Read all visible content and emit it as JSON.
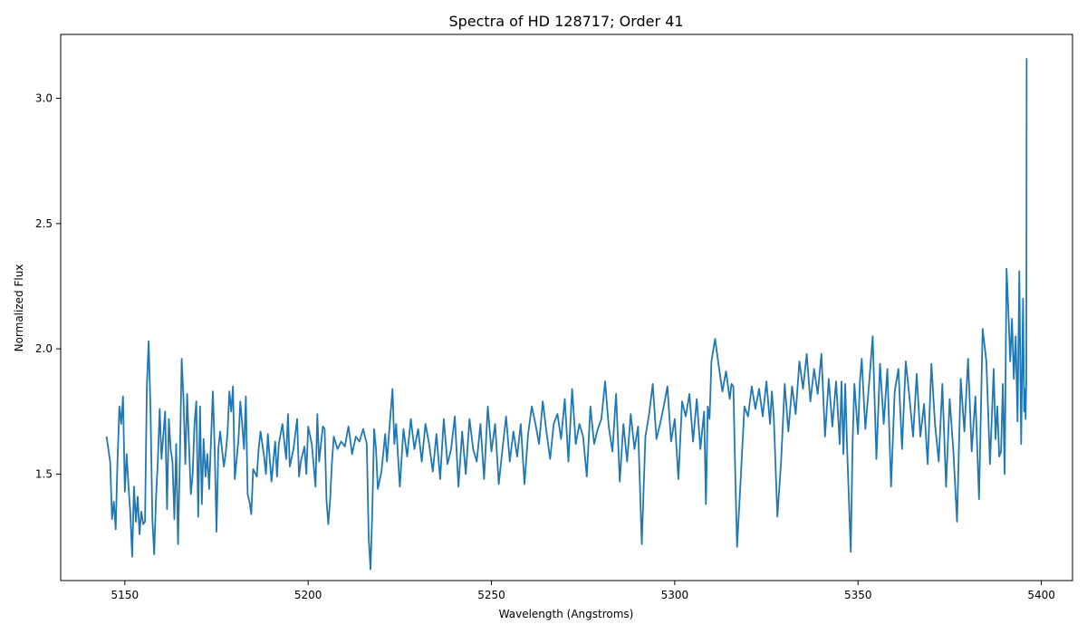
{
  "chart_data": {
    "type": "line",
    "title": "Spectra of HD 128717; Order 41",
    "xlabel": "Wavelength (Angstroms)",
    "ylabel": "Normalized Flux",
    "xlim": [
      5132.5,
      5408.5
    ],
    "ylim": [
      1.075,
      3.255
    ],
    "x_ticks": [
      5150,
      5200,
      5250,
      5300,
      5350,
      5400
    ],
    "x_tick_labels": [
      "5150",
      "5200",
      "5250",
      "5300",
      "5350",
      "5400"
    ],
    "y_ticks": [
      1.5,
      2.0,
      2.5,
      3.0
    ],
    "y_tick_labels": [
      "1.5",
      "2.0",
      "2.5",
      "3.0"
    ],
    "grid": false,
    "legend": "none",
    "series": [
      {
        "color": "#1f77b4",
        "x": [
          5145,
          5146,
          5146.5,
          5147,
          5147.5,
          5148,
          5148.5,
          5149,
          5149.5,
          5150,
          5150.5,
          5151,
          5151.5,
          5152,
          5152.5,
          5153,
          5153.5,
          5154,
          5154.5,
          5155,
          5155.5,
          5156,
          5156.5,
          5157,
          5157.5,
          5158,
          5158.5,
          5159,
          5159.5,
          5160,
          5161,
          5161.5,
          5162,
          5162.5,
          5163,
          5163.5,
          5164,
          5164.5,
          5165,
          5165.5,
          5166,
          5166.5,
          5167,
          5167.5,
          5168,
          5168.5,
          5169,
          5169.5,
          5170,
          5170.5,
          5171,
          5171.5,
          5172,
          5172.5,
          5173,
          5174,
          5174.5,
          5175,
          5175.5,
          5176,
          5177,
          5177.5,
          5178,
          5178.5,
          5179,
          5179.5,
          5180,
          5181,
          5181.5,
          5182,
          5182.5,
          5183,
          5183.5,
          5184,
          5184.5,
          5185,
          5186,
          5186.5,
          5187,
          5188,
          5188.5,
          5189,
          5190,
          5191,
          5191.5,
          5192,
          5193,
          5194,
          5194.5,
          5195,
          5196,
          5197,
          5197.5,
          5198,
          5199,
          5199.5,
          5200,
          5201,
          5202,
          5202.5,
          5203,
          5204,
          5204.5,
          5205,
          5205.5,
          5206,
          5206.5,
          5207,
          5208,
          5209,
          5210,
          5211,
          5212,
          5213,
          5214,
          5215,
          5216,
          5216.5,
          5217,
          5217.5,
          5218,
          5218.5,
          5219,
          5220,
          5221,
          5221.5,
          5222,
          5223,
          5223.5,
          5224,
          5225,
          5226,
          5227,
          5228,
          5229,
          5230,
          5231,
          5232,
          5233,
          5234,
          5235,
          5236,
          5237,
          5238,
          5239,
          5240,
          5241,
          5242,
          5243,
          5244,
          5245,
          5246,
          5247,
          5248,
          5249,
          5250,
          5251,
          5252,
          5253,
          5254,
          5255,
          5256,
          5257,
          5258,
          5259,
          5260,
          5261,
          5262,
          5263,
          5264,
          5265,
          5266,
          5267,
          5268,
          5269,
          5270,
          5271,
          5272,
          5273,
          5274,
          5275,
          5276,
          5277,
          5278,
          5279,
          5280,
          5281,
          5282,
          5283,
          5284,
          5285,
          5286,
          5287,
          5288,
          5289,
          5290,
          5291,
          5292,
          5293,
          5294,
          5295,
          5296,
          5297,
          5298,
          5299,
          5300,
          5301,
          5302,
          5303,
          5304,
          5305,
          5306,
          5307,
          5308,
          5308.5,
          5309,
          5309.5,
          5310,
          5311,
          5312,
          5313,
          5314,
          5315,
          5315.5,
          5316,
          5316.5,
          5317,
          5318,
          5319,
          5320,
          5321,
          5322,
          5323,
          5324,
          5325,
          5326,
          5326.5,
          5327,
          5328,
          5329,
          5330,
          5331,
          5332,
          5333,
          5334,
          5335,
          5336,
          5337,
          5338,
          5339,
          5340,
          5341,
          5342,
          5343,
          5344,
          5345,
          5345.5,
          5346,
          5346.5,
          5347,
          5348,
          5348.5,
          5349,
          5350,
          5350.5,
          5351,
          5352,
          5353,
          5354,
          5355,
          5356,
          5357,
          5358,
          5359,
          5360,
          5361,
          5362,
          5363,
          5364,
          5365,
          5366,
          5367,
          5368,
          5369,
          5370,
          5371,
          5372,
          5373,
          5374,
          5375,
          5376,
          5377,
          5378,
          5379,
          5380,
          5381,
          5382,
          5383,
          5384,
          5385,
          5386,
          5387,
          5387.5,
          5388,
          5388.5,
          5389,
          5389.5,
          5390,
          5390.5,
          5391,
          5391.5,
          5392,
          5392.5,
          5393,
          5393.5,
          5394,
          5394.5,
          5395,
          5395.3,
          5395.5,
          5395.7,
          5395.9,
          5396
        ],
        "y": [
          1.65,
          1.55,
          1.32,
          1.39,
          1.28,
          1.55,
          1.77,
          1.7,
          1.81,
          1.43,
          1.58,
          1.45,
          1.34,
          1.17,
          1.45,
          1.31,
          1.41,
          1.26,
          1.35,
          1.3,
          1.31,
          1.85,
          2.03,
          1.75,
          1.32,
          1.18,
          1.4,
          1.55,
          1.76,
          1.56,
          1.75,
          1.36,
          1.72,
          1.6,
          1.55,
          1.32,
          1.62,
          1.22,
          1.55,
          1.96,
          1.8,
          1.54,
          1.82,
          1.62,
          1.42,
          1.5,
          1.7,
          1.79,
          1.33,
          1.77,
          1.38,
          1.64,
          1.49,
          1.58,
          1.44,
          1.83,
          1.6,
          1.27,
          1.6,
          1.67,
          1.53,
          1.58,
          1.66,
          1.83,
          1.75,
          1.85,
          1.48,
          1.64,
          1.79,
          1.7,
          1.6,
          1.81,
          1.42,
          1.39,
          1.34,
          1.52,
          1.49,
          1.6,
          1.67,
          1.57,
          1.5,
          1.66,
          1.47,
          1.63,
          1.49,
          1.62,
          1.7,
          1.56,
          1.74,
          1.53,
          1.6,
          1.72,
          1.49,
          1.55,
          1.61,
          1.5,
          1.69,
          1.62,
          1.45,
          1.74,
          1.55,
          1.69,
          1.68,
          1.4,
          1.3,
          1.4,
          1.55,
          1.65,
          1.6,
          1.63,
          1.61,
          1.69,
          1.58,
          1.65,
          1.63,
          1.68,
          1.62,
          1.25,
          1.12,
          1.35,
          1.68,
          1.6,
          1.44,
          1.51,
          1.66,
          1.55,
          1.65,
          1.84,
          1.62,
          1.7,
          1.45,
          1.68,
          1.57,
          1.72,
          1.6,
          1.68,
          1.55,
          1.7,
          1.62,
          1.51,
          1.66,
          1.48,
          1.72,
          1.54,
          1.6,
          1.73,
          1.45,
          1.67,
          1.5,
          1.72,
          1.6,
          1.55,
          1.7,
          1.48,
          1.77,
          1.59,
          1.7,
          1.46,
          1.6,
          1.73,
          1.55,
          1.67,
          1.57,
          1.7,
          1.46,
          1.66,
          1.77,
          1.7,
          1.62,
          1.79,
          1.67,
          1.56,
          1.7,
          1.74,
          1.64,
          1.8,
          1.55,
          1.84,
          1.62,
          1.7,
          1.65,
          1.49,
          1.77,
          1.62,
          1.68,
          1.72,
          1.87,
          1.69,
          1.59,
          1.82,
          1.47,
          1.7,
          1.55,
          1.74,
          1.6,
          1.69,
          1.22,
          1.65,
          1.74,
          1.86,
          1.64,
          1.7,
          1.77,
          1.85,
          1.63,
          1.72,
          1.48,
          1.79,
          1.73,
          1.82,
          1.63,
          1.8,
          1.6,
          1.75,
          1.38,
          1.77,
          1.72,
          1.95,
          2.04,
          1.93,
          1.83,
          1.91,
          1.8,
          1.86,
          1.85,
          1.5,
          1.21,
          1.48,
          1.77,
          1.73,
          1.85,
          1.76,
          1.84,
          1.73,
          1.87,
          1.7,
          1.83,
          1.73,
          1.33,
          1.55,
          1.86,
          1.67,
          1.85,
          1.74,
          1.95,
          1.84,
          1.98,
          1.79,
          1.92,
          1.82,
          1.98,
          1.65,
          1.88,
          1.69,
          1.87,
          1.62,
          1.87,
          1.58,
          1.86,
          1.61,
          1.19,
          1.62,
          1.86,
          1.66,
          1.87,
          1.96,
          1.68,
          1.86,
          2.05,
          1.56,
          1.94,
          1.7,
          1.92,
          1.45,
          1.83,
          1.92,
          1.6,
          1.95,
          1.81,
          1.65,
          1.9,
          1.65,
          1.78,
          1.54,
          1.94,
          1.7,
          1.55,
          1.86,
          1.45,
          1.8,
          1.59,
          1.31,
          1.88,
          1.67,
          1.96,
          1.59,
          1.81,
          1.4,
          2.08,
          1.95,
          1.54,
          1.92,
          1.64,
          1.77,
          1.57,
          1.59,
          1.86,
          1.5,
          2.32,
          2.15,
          1.95,
          2.12,
          1.88,
          2.05,
          1.71,
          2.31,
          1.62,
          2.2,
          1.75,
          1.84,
          1.72,
          1.88,
          3.16
        ]
      }
    ]
  }
}
